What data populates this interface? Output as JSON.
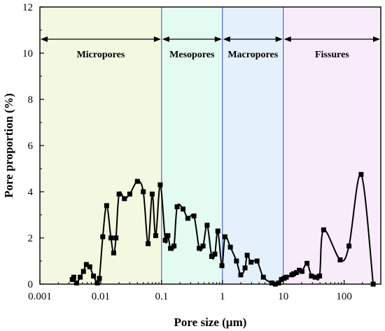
{
  "chart_data": {
    "type": "line",
    "xlabel": "Pore size (µm)",
    "ylabel": "Pore proportion (%)",
    "x_scale": "log",
    "xlim": [
      0.001,
      400
    ],
    "ylim": [
      0,
      12
    ],
    "x_ticks": [
      0.001,
      0.01,
      0.1,
      1,
      10,
      100
    ],
    "x_tick_labels": [
      "0.001",
      "0.01",
      "0.1",
      "1",
      "10",
      "100"
    ],
    "y_ticks": [
      0,
      2,
      4,
      6,
      8,
      10,
      12
    ],
    "y_tick_labels": [
      "0",
      "2",
      "4",
      "6",
      "8",
      "10",
      "12"
    ],
    "grid": false,
    "regions": [
      {
        "label": "Micropores",
        "from": 0.001,
        "to": 0.1,
        "color": "#f2f9e0"
      },
      {
        "label": "Mesopores",
        "from": 0.1,
        "to": 1,
        "color": "#e3fbf0"
      },
      {
        "label": "Macropores",
        "from": 1,
        "to": 10,
        "color": "#e4f1fd"
      },
      {
        "label": "Fissures",
        "from": 10,
        "to": 400,
        "color": "#f8ecfa"
      }
    ],
    "series": [
      {
        "marker": "square",
        "color": "#000000",
        "points": [
          [
            0.0034,
            0.2
          ],
          [
            0.0036,
            0.3
          ],
          [
            0.004,
            0.05
          ],
          [
            0.0046,
            0.3
          ],
          [
            0.0052,
            0.55
          ],
          [
            0.0058,
            0.85
          ],
          [
            0.0066,
            0.75
          ],
          [
            0.0076,
            0.35
          ],
          [
            0.0088,
            0.05
          ],
          [
            0.0095,
            0.25
          ],
          [
            0.0108,
            2.05
          ],
          [
            0.0125,
            3.4
          ],
          [
            0.0147,
            2.0
          ],
          [
            0.0163,
            1.35
          ],
          [
            0.0178,
            2.0
          ],
          [
            0.02,
            3.9
          ],
          [
            0.0245,
            3.7
          ],
          [
            0.03,
            3.9
          ],
          [
            0.04,
            4.45
          ],
          [
            0.05,
            4.0
          ],
          [
            0.06,
            1.75
          ],
          [
            0.07,
            3.9
          ],
          [
            0.08,
            2.1
          ],
          [
            0.095,
            4.3
          ],
          [
            0.115,
            1.9
          ],
          [
            0.127,
            2.1
          ],
          [
            0.14,
            1.55
          ],
          [
            0.16,
            1.65
          ],
          [
            0.18,
            3.35
          ],
          [
            0.225,
            3.25
          ],
          [
            0.27,
            2.85
          ],
          [
            0.34,
            2.95
          ],
          [
            0.415,
            1.55
          ],
          [
            0.48,
            1.65
          ],
          [
            0.56,
            2.55
          ],
          [
            0.665,
            1.2
          ],
          [
            0.75,
            1.3
          ],
          [
            0.84,
            2.3
          ],
          [
            0.98,
            0.8
          ],
          [
            1.1,
            2.05
          ],
          [
            1.35,
            1.6
          ],
          [
            1.7,
            1.0
          ],
          [
            2.0,
            0.4
          ],
          [
            2.35,
            0.7
          ],
          [
            2.55,
            1.25
          ],
          [
            2.95,
            0.95
          ],
          [
            3.7,
            1.0
          ],
          [
            4.7,
            0.3
          ],
          [
            6.5,
            0.05
          ],
          [
            7.4,
            0.0
          ],
          [
            8.4,
            0.05
          ],
          [
            9.3,
            0.2
          ],
          [
            10.3,
            0.25
          ],
          [
            11.2,
            0.3
          ],
          [
            13.8,
            0.4
          ],
          [
            14.8,
            0.45
          ],
          [
            16.4,
            0.5
          ],
          [
            18.3,
            0.6
          ],
          [
            20.3,
            0.55
          ],
          [
            24.5,
            0.9
          ],
          [
            29.0,
            0.35
          ],
          [
            33.3,
            0.3
          ],
          [
            39.5,
            0.35
          ],
          [
            46.0,
            2.35
          ],
          [
            86.0,
            1.05
          ],
          [
            120.0,
            1.65
          ],
          [
            190.0,
            4.75
          ],
          [
            300.0,
            0.0
          ]
        ]
      }
    ]
  }
}
